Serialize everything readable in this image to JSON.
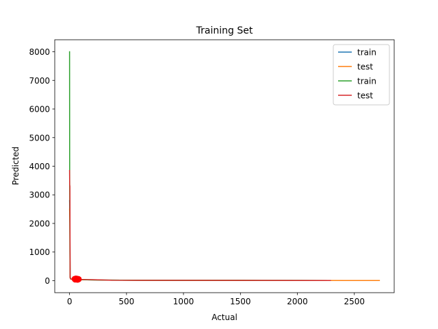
{
  "chart_data": {
    "type": "line",
    "title": "Training Set",
    "xlabel": "Actual",
    "ylabel": "Predicted",
    "xlim": [
      -130,
      2850
    ],
    "ylim": [
      -420,
      8420
    ],
    "x_ticks": [
      0,
      500,
      1000,
      1500,
      2000,
      2500
    ],
    "y_ticks": [
      0,
      1000,
      2000,
      3000,
      4000,
      5000,
      6000,
      7000,
      8000
    ],
    "grid": false,
    "legend_position": "top-right",
    "series": [
      {
        "name": "train",
        "color": "#1f77b4",
        "x": [
          0,
          3,
          5,
          10,
          50,
          150,
          300,
          600,
          1000,
          1500,
          2000,
          2290
        ],
        "y": [
          2800,
          2200,
          150,
          60,
          40,
          30,
          20,
          15,
          12,
          10,
          8,
          5
        ]
      },
      {
        "name": "test",
        "color": "#ff7f0e",
        "x": [
          0,
          3,
          5,
          10,
          50,
          150,
          300,
          600,
          1000,
          1500,
          2000,
          2500,
          2720
        ],
        "y": [
          2500,
          2000,
          120,
          50,
          40,
          30,
          20,
          15,
          12,
          10,
          8,
          6,
          5
        ]
      },
      {
        "name": "train",
        "color": "#2ca02c",
        "x": [
          0,
          1,
          3,
          5,
          10,
          50,
          150,
          300,
          600,
          1000,
          1500,
          2000,
          2290
        ],
        "y": [
          8000,
          3800,
          1000,
          100,
          60,
          40,
          30,
          20,
          15,
          12,
          10,
          8,
          5
        ]
      },
      {
        "name": "test",
        "color": "#d62728",
        "x": [
          0,
          1,
          3,
          5,
          10,
          30,
          60,
          100,
          200,
          370,
          600,
          1000,
          1500,
          2000,
          2290
        ],
        "y": [
          3850,
          3350,
          3300,
          100,
          60,
          50,
          45,
          40,
          35,
          15,
          12,
          10,
          8,
          6,
          5
        ]
      }
    ],
    "markers": {
      "color": "#ff0000",
      "x": [
        45,
        50,
        55,
        60,
        65,
        70,
        75,
        80
      ],
      "y": [
        60,
        40,
        70,
        45,
        65,
        35,
        55,
        50
      ]
    }
  }
}
